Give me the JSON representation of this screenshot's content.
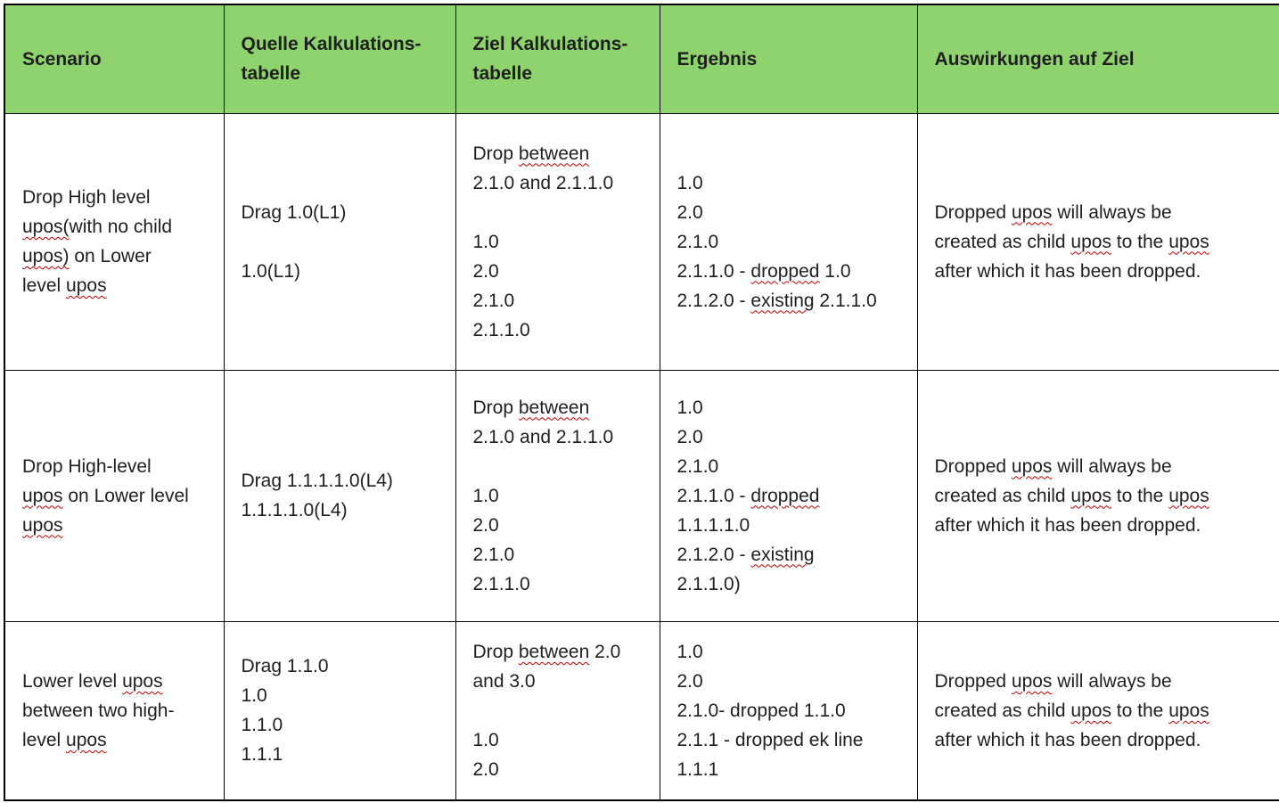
{
  "table": {
    "header_bg": "#8FD36E",
    "border_color": "#000000",
    "spellcheck_color": "#C00000",
    "columns": [
      {
        "key": "scenario",
        "label_lines": [
          "Scenario"
        ]
      },
      {
        "key": "quelle",
        "label_lines": [
          "Quelle Kalkulations-",
          "tabelle"
        ]
      },
      {
        "key": "ziel",
        "label_lines": [
          "Ziel Kalkulations-",
          "tabelle"
        ]
      },
      {
        "key": "ergebnis",
        "label_lines": [
          "Ergebnis"
        ]
      },
      {
        "key": "auswirkungen",
        "label_lines": [
          "Auswirkungen auf Ziel"
        ]
      }
    ],
    "rows": [
      {
        "scenario": [
          "Drop High level",
          [
            {
              "t": "upos(",
              "err": true
            },
            {
              "t": "with no child"
            }
          ],
          [
            {
              "t": "upos)",
              "err": true
            },
            {
              "t": " on Lower"
            }
          ],
          [
            {
              "t": "level "
            },
            {
              "t": "upos",
              "err": true
            }
          ]
        ],
        "quelle": [
          "Drag 1.0(L1)",
          "",
          "1.0(L1)"
        ],
        "ziel": [
          [
            {
              "t": "Drop "
            },
            {
              "t": "between",
              "err": true
            }
          ],
          "2.1.0 and 2.1.1.0",
          "",
          "1.0",
          "2.0",
          "2.1.0",
          "2.1.1.0"
        ],
        "ergebnis": [
          "1.0",
          "2.0",
          "2.1.0",
          [
            {
              "t": "2.1.1.0 - "
            },
            {
              "t": "dropped",
              "err": true
            },
            {
              "t": " 1.0"
            }
          ],
          [
            {
              "t": "2.1.2.0 - "
            },
            {
              "t": "existing",
              "err": true
            },
            {
              "t": " 2.1.1.0"
            }
          ]
        ],
        "auswirkungen": [
          [
            {
              "t": "Dropped "
            },
            {
              "t": "upos",
              "err": true
            },
            {
              "t": " will always be"
            }
          ],
          [
            {
              "t": "created as child "
            },
            {
              "t": "upos",
              "err": true
            },
            {
              "t": " to the "
            },
            {
              "t": "upos",
              "err": true
            }
          ],
          "after which it has been dropped."
        ]
      },
      {
        "scenario": [
          "Drop High-level",
          [
            {
              "t": "upos",
              "err": true
            },
            {
              "t": " on Lower level"
            }
          ],
          [
            {
              "t": "upos",
              "err": true
            }
          ]
        ],
        "quelle": [
          "Drag 1.1.1.1.0(L4)",
          "1.1.1.1.0(L4)"
        ],
        "ziel": [
          [
            {
              "t": "Drop "
            },
            {
              "t": "between",
              "err": true
            }
          ],
          "2.1.0 and 2.1.1.0",
          "",
          "1.0",
          "2.0",
          "2.1.0",
          "2.1.1.0"
        ],
        "ergebnis": [
          "1.0",
          "2.0",
          "2.1.0",
          [
            {
              "t": "2.1.1.0 - "
            },
            {
              "t": "dropped",
              "err": true
            }
          ],
          "1.1.1.1.0",
          [
            {
              "t": "2.1.2.0 - "
            },
            {
              "t": "existing",
              "err": true
            }
          ],
          "2.1.1.0)"
        ],
        "auswirkungen": [
          [
            {
              "t": "Dropped "
            },
            {
              "t": "upos",
              "err": true
            },
            {
              "t": " will always be"
            }
          ],
          [
            {
              "t": "created as child "
            },
            {
              "t": "upos",
              "err": true
            },
            {
              "t": " to the "
            },
            {
              "t": "upos",
              "err": true
            }
          ],
          "after which it has been dropped."
        ]
      },
      {
        "scenario": [
          [
            {
              "t": "Lower level "
            },
            {
              "t": "upos",
              "err": true
            }
          ],
          "between two high-",
          [
            {
              "t": "level "
            },
            {
              "t": "upos",
              "err": true
            }
          ]
        ],
        "quelle": [
          "Drag 1.1.0",
          "1.0",
          "1.1.0",
          "1.1.1"
        ],
        "ziel": [
          [
            {
              "t": "Drop "
            },
            {
              "t": "between",
              "err": true
            },
            {
              "t": " 2.0"
            }
          ],
          "and 3.0",
          "",
          "1.0",
          "2.0"
        ],
        "ergebnis": [
          "1.0",
          "2.0",
          "2.1.0- dropped 1.1.0",
          "2.1.1 - dropped ek line",
          "1.1.1"
        ],
        "auswirkungen": [
          [
            {
              "t": "Dropped "
            },
            {
              "t": "upos",
              "err": true
            },
            {
              "t": " will always be"
            }
          ],
          [
            {
              "t": "created as child "
            },
            {
              "t": "upos",
              "err": true
            },
            {
              "t": " to the "
            },
            {
              "t": "upos",
              "err": true
            }
          ],
          "after which it has been dropped."
        ]
      }
    ]
  }
}
